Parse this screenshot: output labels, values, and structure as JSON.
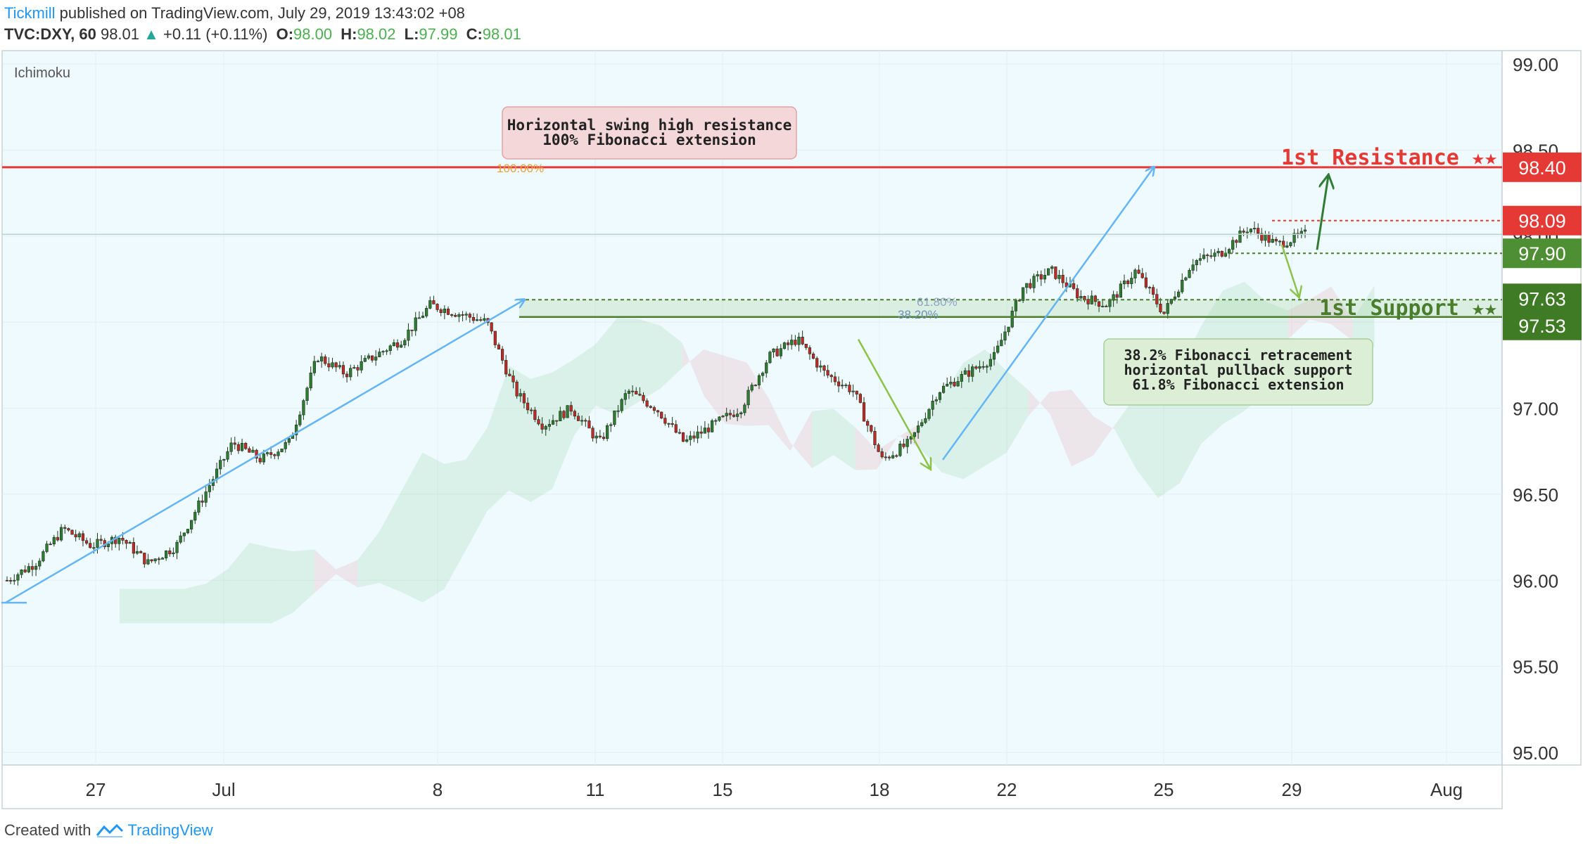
{
  "header": {
    "publisher": "Tickmill",
    "published_text": "published on TradingView.com, July 29, 2019 13:43:02 +08",
    "symbol": "TVC:DXY, 60",
    "last": "98.01",
    "change": "+0.11 (+0.11%)",
    "o_label": "O:",
    "o": "98.00",
    "h_label": "H:",
    "h": "98.02",
    "l_label": "L:",
    "l": "97.99",
    "c_label": "C:",
    "c": "98.01"
  },
  "indicator_label": "Ichimoku",
  "annotations": {
    "resistance_box": [
      "Horizontal swing high resistance",
      "100% Fibonacci extension"
    ],
    "support_box": [
      "38.2% Fibonacci retracement",
      "horizontal pullback support",
      "61.8% Fibonacci extension"
    ],
    "resistance_title": "1st Resistance ★★",
    "support_title": "1st Support ★★",
    "fib_100": "100.00%",
    "fib_618": "61.80%",
    "fib_382": "38.20%"
  },
  "footer": {
    "created_with": "Created with",
    "brand": "TradingView"
  },
  "colors": {
    "bg": "#eefafd",
    "resistance": "#e53935",
    "support": "#4a7e2c",
    "arrow_blue": "#64b5f6",
    "arrow_green": "#8bc34a",
    "candle_up": "#2e7d32",
    "candle_down": "#c62828"
  },
  "chart_data": {
    "type": "candlestick",
    "title": "TVC:DXY, 60",
    "ylim": [
      95.0,
      99.0
    ],
    "y_ticks": [
      "99.00",
      "98.50",
      "98.00",
      "97.50",
      "97.00",
      "96.50",
      "96.00",
      "95.50",
      "95.00"
    ],
    "x_ticks": [
      "27",
      "Jul",
      "8",
      "11",
      "15",
      "18",
      "22",
      "25",
      "29",
      "Aug"
    ],
    "price_labels": [
      {
        "label": "98.40",
        "value": 98.4,
        "kind": "resistance"
      },
      {
        "label": "98.09",
        "value": 98.09,
        "kind": "resistance-dotted"
      },
      {
        "label": "97.90",
        "value": 97.9,
        "kind": "support-dotted"
      },
      {
        "label": "97.63",
        "value": 97.63,
        "kind": "support"
      },
      {
        "label": "97.53",
        "value": 97.53,
        "kind": "support"
      }
    ],
    "last_price": 98.01,
    "price_path": [
      96.0,
      96.1,
      96.3,
      96.2,
      96.25,
      96.1,
      96.2,
      96.5,
      96.8,
      96.7,
      96.8,
      97.3,
      97.2,
      97.3,
      97.4,
      97.6,
      97.55,
      97.5,
      97.1,
      96.9,
      97.0,
      96.8,
      97.1,
      97.0,
      96.8,
      96.9,
      97.0,
      97.3,
      97.4,
      97.2,
      97.1,
      96.7,
      96.8,
      97.1,
      97.2,
      97.3,
      97.7,
      97.8,
      97.65,
      97.6,
      97.8,
      97.55,
      97.85,
      97.9,
      98.05,
      97.95,
      98.01
    ]
  }
}
